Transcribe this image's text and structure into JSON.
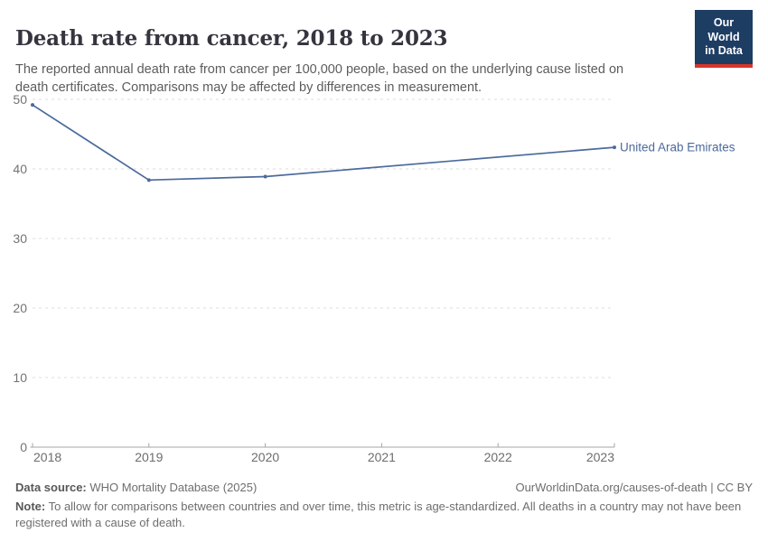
{
  "header": {
    "title": "Death rate from cancer, 2018 to 2023",
    "subtitle": "The reported annual death rate from cancer per 100,000 people, based on the underlying cause listed on death certificates. Comparisons may be affected by differences in measurement."
  },
  "logo": {
    "line1": "Our World",
    "line2": "in Data",
    "bg_color": "#1d3d63",
    "bar_color": "#d7352b"
  },
  "chart_data": {
    "type": "line",
    "title": "Death rate from cancer, 2018 to 2023",
    "xlabel": "",
    "ylabel": "",
    "xlim": [
      2018,
      2023
    ],
    "ylim": [
      0,
      50
    ],
    "xticks": [
      2018,
      2019,
      2020,
      2021,
      2022,
      2023
    ],
    "yticks": [
      0,
      10,
      20,
      30,
      40,
      50
    ],
    "grid": "horizontal-dashed",
    "legend_position": "end-of-line-label",
    "series": [
      {
        "name": "United Arab Emirates",
        "x": [
          2018,
          2019,
          2020,
          2023
        ],
        "values": [
          49.2,
          38.4,
          38.9,
          43.1
        ],
        "color": "#4C6A9C"
      }
    ]
  },
  "footer": {
    "source_label": "Data source:",
    "source_text": " WHO Mortality Database (2025)",
    "right_text": "OurWorldinData.org/causes-of-death | CC BY",
    "note_label": "Note:",
    "note_text": " To allow for comparisons between countries and over time, this metric is age-standardized. All deaths in a country may not have been registered with a cause of death."
  }
}
